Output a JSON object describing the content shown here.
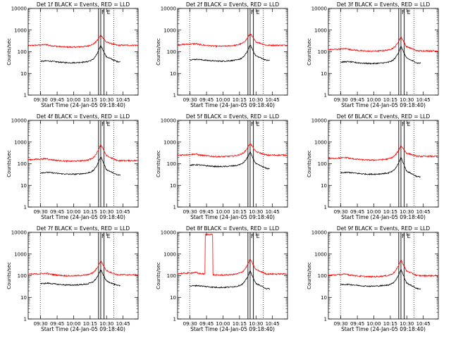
{
  "chart_data": {
    "type": "line",
    "yscale": "log",
    "ylabel": "Counts/sec",
    "ylim": [
      1,
      10000
    ],
    "y_ticks": [
      1,
      10,
      100,
      1000,
      10000
    ],
    "y_tick_labels": [
      "1",
      "10",
      "100",
      "1000",
      "10000"
    ],
    "x_unit": "minutes since 09:18:40",
    "xlim": [
      0,
      100
    ],
    "x_ticks_a": [
      11.33,
      26.33,
      41.33,
      56.33,
      71.33,
      86.33
    ],
    "x_tick_labels_a": [
      "09:30",
      "09:45",
      "10:00",
      "10:15",
      "10:30",
      "10:45"
    ],
    "x_ticks_b": [
      11.33,
      26.33,
      41.33,
      56.33,
      71.33,
      86.33
    ],
    "x_tick_labels_b": [
      "09:30",
      "09:45",
      "10:00",
      "10:15",
      "10:30",
      "10:45"
    ],
    "flare_times": [
      64,
      66,
      69
    ],
    "dotted_times": [
      11,
      78
    ],
    "legend_marks": [
      "F",
      "E"
    ],
    "series_colors": {
      "events": "#000000",
      "lld": "#ff0000"
    },
    "panels": [
      {
        "title": "Det 1f BLACK = Events, RED = LLD",
        "xlabel": "Start Time (24-Jan-05 09:18:40)",
        "ticks": "a",
        "events": {
          "t_start": 11,
          "t_end": 84,
          "base": 38,
          "peak": 200,
          "tail": 35
        },
        "lld": {
          "t_start": 0,
          "t_end": 100,
          "base": 200,
          "peak": 600,
          "tail": 200
        }
      },
      {
        "title": "Det 2f BLACK = Events, RED = LLD",
        "xlabel": "Start Time (24-Jan-05 09:18:40)",
        "ticks": "a",
        "events": {
          "t_start": 11,
          "t_end": 84,
          "base": 45,
          "peak": 210,
          "tail": 40
        },
        "lld": {
          "t_start": 0,
          "t_end": 100,
          "base": 220,
          "peak": 700,
          "tail": 200
        }
      },
      {
        "title": "Det 3f BLACK = Events, RED = LLD",
        "xlabel": "Start Time (24-Jan-05 09:18:40)",
        "ticks": "b",
        "events": {
          "t_start": 11,
          "t_end": 84,
          "base": 35,
          "peak": 180,
          "tail": 30
        },
        "lld": {
          "t_start": 0,
          "t_end": 100,
          "base": 130,
          "peak": 500,
          "tail": 110
        }
      },
      {
        "title": "Det 4f BLACK = Events, RED = LLD",
        "xlabel": "Start Time (24-Jan-05 09:18:40)",
        "ticks": "a",
        "events": {
          "t_start": 11,
          "t_end": 84,
          "base": 40,
          "peak": 220,
          "tail": 30
        },
        "lld": {
          "t_start": 0,
          "t_end": 100,
          "base": 160,
          "peak": 800,
          "tail": 140
        }
      },
      {
        "title": "Det 5f BLACK = Events, RED = LLD",
        "xlabel": "Start Time (24-Jan-05 09:18:40)",
        "ticks": "a",
        "events": {
          "t_start": 11,
          "t_end": 84,
          "base": 90,
          "peak": 350,
          "tail": 60
        },
        "lld": {
          "t_start": 0,
          "t_end": 100,
          "base": 260,
          "peak": 900,
          "tail": 250
        }
      },
      {
        "title": "Det 6f BLACK = Events, RED = LLD",
        "xlabel": "Start Time (24-Jan-05 09:18:40)",
        "ticks": "b",
        "events": {
          "t_start": 11,
          "t_end": 84,
          "base": 40,
          "peak": 200,
          "tail": 25
        },
        "lld": {
          "t_start": 0,
          "t_end": 100,
          "base": 180,
          "peak": 700,
          "tail": 220
        }
      },
      {
        "title": "Det 7f BLACK = Events, RED = LLD",
        "xlabel": "Start Time (24-Jan-05 09:18:40)",
        "ticks": "a",
        "events": {
          "t_start": 11,
          "t_end": 84,
          "base": 45,
          "peak": 190,
          "tail": 35
        },
        "lld": {
          "t_start": 0,
          "t_end": 100,
          "base": 120,
          "peak": 500,
          "tail": 110
        }
      },
      {
        "title": "Det 8f BLACK = Events, RED = LLD",
        "xlabel": "Start Time (24-Jan-05 09:18:40)",
        "ticks": "a",
        "events": {
          "t_start": 11,
          "t_end": 84,
          "base": 35,
          "peak": 170,
          "tail": 25
        },
        "lld": {
          "t_start": 0,
          "t_end": 100,
          "base": 130,
          "peak": 600,
          "tail": 120,
          "spike": [
            25,
            32,
            8000
          ]
        }
      },
      {
        "title": "Det 9f BLACK = Events, RED = LLD",
        "xlabel": "Start Time (24-Jan-05 09:18:40)",
        "ticks": "b",
        "events": {
          "t_start": 11,
          "t_end": 84,
          "base": 40,
          "peak": 200,
          "tail": 25
        },
        "lld": {
          "t_start": 0,
          "t_end": 100,
          "base": 110,
          "peak": 550,
          "tail": 100
        }
      }
    ]
  }
}
